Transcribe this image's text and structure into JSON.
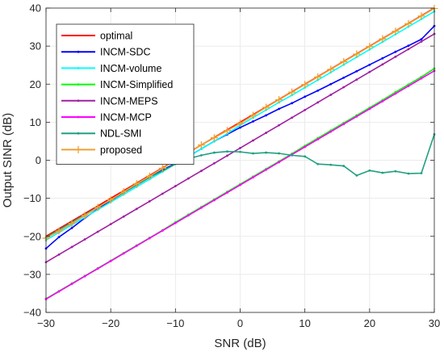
{
  "chart_data": {
    "type": "line",
    "title": "",
    "xlabel": "SNR (dB)",
    "ylabel": "Output SINR (dB)",
    "xlim": [
      -30,
      30
    ],
    "ylim": [
      -40,
      40
    ],
    "xticks": [
      -30,
      -20,
      -10,
      0,
      10,
      20,
      30
    ],
    "yticks": [
      -40,
      -30,
      -20,
      -10,
      0,
      10,
      20,
      30,
      40
    ],
    "grid": true,
    "legend_position": "top-left",
    "series": [
      {
        "name": "optimal",
        "color": "#ff0000",
        "marker": "none",
        "x": [
          -30,
          30
        ],
        "y": [
          -20,
          40
        ]
      },
      {
        "name": "INCM-SDC",
        "color": "#0000ff",
        "marker": "dot",
        "x": [
          -30,
          -28,
          -26,
          -24,
          -22,
          -20,
          -18,
          -16,
          -14,
          -12,
          -10,
          -8,
          -6,
          -4,
          -2,
          0,
          2,
          4,
          6,
          8,
          10,
          12,
          14,
          16,
          18,
          20,
          22,
          24,
          26,
          28,
          30
        ],
        "y": [
          -23.2,
          -20.2,
          -17.8,
          -15.2,
          -12.8,
          -10.6,
          -8.5,
          -6.5,
          -4.5,
          -2.6,
          -0.8,
          1.0,
          3.0,
          5.0,
          6.8,
          8.6,
          10.2,
          11.8,
          13.5,
          15.0,
          16.7,
          18.3,
          20.0,
          21.7,
          23.4,
          25.1,
          26.8,
          28.5,
          30.1,
          31.8,
          35.3
        ]
      },
      {
        "name": "INCM-volume",
        "color": "#00ffff",
        "marker": "dot",
        "x": [
          -30,
          -28,
          -26,
          -24,
          -22,
          -20,
          -18,
          -16,
          -14,
          -12,
          -10,
          -8,
          -6,
          -4,
          -2,
          0,
          2,
          4,
          6,
          8,
          10,
          12,
          14,
          16,
          18,
          20,
          22,
          24,
          26,
          28,
          30
        ],
        "y": [
          -21.0,
          -19.0,
          -17.0,
          -15.0,
          -13.0,
          -11.0,
          -9.0,
          -7.0,
          -5.0,
          -3.0,
          -1.0,
          1.0,
          3.0,
          5.0,
          7.0,
          9.2,
          11.2,
          13.2,
          15.2,
          17.1,
          19.1,
          21.1,
          23.1,
          25.1,
          27.1,
          29.1,
          31.1,
          33.1,
          35.1,
          37.1,
          39.1
        ]
      },
      {
        "name": "INCM-Simplified",
        "color": "#00ff00",
        "marker": "dot",
        "x": [
          -30,
          -28,
          -26,
          -24,
          -22,
          -20,
          -18,
          -16,
          -14,
          -12,
          -10,
          -8,
          -6,
          -4,
          -2,
          0,
          2,
          4,
          6,
          8,
          10,
          12,
          14,
          16,
          18,
          20,
          22,
          24,
          26,
          28,
          30
        ],
        "y": [
          -36.4,
          -34.4,
          -32.4,
          -30.4,
          -28.4,
          -26.4,
          -24.4,
          -22.4,
          -20.4,
          -18.4,
          -16.3,
          -14.3,
          -12.3,
          -10.3,
          -8.3,
          -6.3,
          -4.3,
          -2.3,
          -0.3,
          1.7,
          3.8,
          5.8,
          7.8,
          9.8,
          11.8,
          13.8,
          15.8,
          17.9,
          19.9,
          21.9,
          24.1
        ]
      },
      {
        "name": "INCM-MEPS",
        "color": "#a020a0",
        "marker": "dot",
        "x": [
          -30,
          -28,
          -26,
          -24,
          -22,
          -20,
          -18,
          -16,
          -14,
          -12,
          -10,
          -8,
          -6,
          -4,
          -2,
          0,
          2,
          4,
          6,
          8,
          10,
          12,
          14,
          16,
          18,
          20,
          22,
          24,
          26,
          28,
          30
        ],
        "y": [
          -26.8,
          -24.8,
          -22.8,
          -20.8,
          -18.8,
          -16.8,
          -14.8,
          -12.8,
          -10.8,
          -8.8,
          -6.8,
          -4.8,
          -2.8,
          -0.8,
          1.2,
          3.2,
          5.2,
          7.2,
          9.2,
          11.2,
          13.2,
          15.2,
          17.2,
          19.2,
          21.2,
          23.2,
          25.2,
          27.2,
          29.2,
          31.2,
          33.2
        ]
      },
      {
        "name": "INCM-MCP",
        "color": "#ff00ff",
        "marker": "dot",
        "x": [
          -30,
          -28,
          -26,
          -24,
          -22,
          -20,
          -18,
          -16,
          -14,
          -12,
          -10,
          -8,
          -6,
          -4,
          -2,
          0,
          2,
          4,
          6,
          8,
          10,
          12,
          14,
          16,
          18,
          20,
          22,
          24,
          26,
          28,
          30
        ],
        "y": [
          -36.5,
          -34.5,
          -32.5,
          -30.5,
          -28.5,
          -26.5,
          -24.5,
          -22.5,
          -20.5,
          -18.5,
          -16.5,
          -14.5,
          -12.5,
          -10.5,
          -8.5,
          -6.5,
          -4.5,
          -2.5,
          -0.5,
          1.5,
          3.5,
          5.5,
          7.5,
          9.5,
          11.5,
          13.5,
          15.5,
          17.5,
          19.5,
          21.5,
          23.5
        ]
      },
      {
        "name": "NDL-SMI",
        "color": "#20a080",
        "marker": "dot",
        "x": [
          -30,
          -28,
          -26,
          -24,
          -22,
          -20,
          -18,
          -16,
          -14,
          -12,
          -10,
          -8,
          -6,
          -4,
          -2,
          0,
          2,
          4,
          6,
          8,
          10,
          12,
          14,
          16,
          18,
          20,
          22,
          24,
          26,
          28,
          30
        ],
        "y": [
          -20.3,
          -18.3,
          -16.3,
          -14.3,
          -12.3,
          -10.5,
          -8.5,
          -6.5,
          -4.5,
          -2.8,
          -1.0,
          0.4,
          1.3,
          2.0,
          2.3,
          2.2,
          1.8,
          2.0,
          1.8,
          1.3,
          1.0,
          -1.0,
          -1.2,
          -1.5,
          -4.0,
          -2.7,
          -3.3,
          -2.9,
          -3.5,
          -3.4,
          6.8
        ]
      },
      {
        "name": "proposed",
        "color": "#f0a030",
        "marker": "plus",
        "x": [
          -30,
          -28,
          -26,
          -24,
          -22,
          -20,
          -18,
          -16,
          -14,
          -12,
          -10,
          -8,
          -6,
          -4,
          -2,
          0,
          2,
          4,
          6,
          8,
          10,
          12,
          14,
          16,
          18,
          20,
          22,
          24,
          26,
          28,
          30
        ],
        "y": [
          -20.5,
          -18.6,
          -16.6,
          -14.5,
          -12.4,
          -10.4,
          -8.3,
          -6.2,
          -4.2,
          -2.1,
          -0.1,
          1.9,
          4.0,
          5.9,
          7.8,
          9.7,
          11.8,
          13.9,
          15.9,
          17.9,
          19.9,
          21.9,
          23.9,
          25.9,
          27.9,
          29.9,
          31.9,
          33.9,
          35.9,
          37.9,
          39.9
        ]
      }
    ]
  }
}
